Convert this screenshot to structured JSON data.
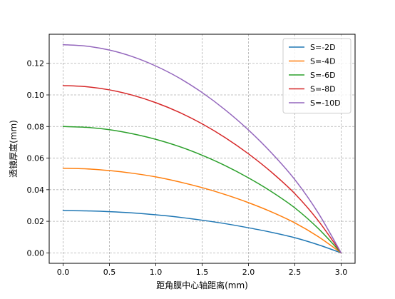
{
  "chart_data": {
    "type": "line",
    "xlabel": "距角膜中心轴距离(mm)",
    "ylabel": "透镜厚度(mm)",
    "xlim": [
      -0.15,
      3.15
    ],
    "ylim": [
      -0.0066,
      0.1384
    ],
    "xticks": [
      {
        "value": 0.0,
        "label": "0.0"
      },
      {
        "value": 0.5,
        "label": "0.5"
      },
      {
        "value": 1.0,
        "label": "1.0"
      },
      {
        "value": 1.5,
        "label": "1.5"
      },
      {
        "value": 2.0,
        "label": "2.0"
      },
      {
        "value": 2.5,
        "label": "2.5"
      },
      {
        "value": 3.0,
        "label": "3.0"
      }
    ],
    "yticks": [
      {
        "value": 0.0,
        "label": "0.00"
      },
      {
        "value": 0.02,
        "label": "0.02"
      },
      {
        "value": 0.04,
        "label": "0.04"
      },
      {
        "value": 0.06,
        "label": "0.06"
      },
      {
        "value": 0.08,
        "label": "0.08"
      },
      {
        "value": 0.1,
        "label": "0.10"
      },
      {
        "value": 0.12,
        "label": "0.12"
      }
    ],
    "grid": true,
    "legend_position": "top-right",
    "x": [
      0.0,
      0.25,
      0.5,
      0.75,
      1.0,
      1.25,
      1.5,
      1.75,
      2.0,
      2.25,
      2.5,
      2.75,
      3.0
    ],
    "series": [
      {
        "name": "S=-2D",
        "color": "#1f77b4",
        "values": [
          0.0268,
          0.0266,
          0.0261,
          0.0253,
          0.0241,
          0.0226,
          0.0207,
          0.0185,
          0.0159,
          0.013,
          0.0096,
          0.0052,
          0.0
        ]
      },
      {
        "name": "S=-4D",
        "color": "#ff7f0e",
        "values": [
          0.0536,
          0.0532,
          0.0521,
          0.0504,
          0.0481,
          0.045,
          0.0413,
          0.0369,
          0.0318,
          0.0259,
          0.019,
          0.0104,
          0.0
        ]
      },
      {
        "name": "S=-6D",
        "color": "#2ca02c",
        "values": [
          0.08,
          0.0795,
          0.078,
          0.0754,
          0.0719,
          0.0674,
          0.0618,
          0.0552,
          0.0475,
          0.0387,
          0.0285,
          0.0156,
          0.0
        ]
      },
      {
        "name": "S=-8D",
        "color": "#d62728",
        "values": [
          0.1059,
          0.1052,
          0.1032,
          0.0998,
          0.0951,
          0.0891,
          0.0817,
          0.0729,
          0.0627,
          0.051,
          0.0375,
          0.0206,
          0.0
        ]
      },
      {
        "name": "S=-10D",
        "color": "#9467bd",
        "values": [
          0.1318,
          0.1309,
          0.1284,
          0.1242,
          0.1183,
          0.1108,
          0.1015,
          0.0905,
          0.0778,
          0.0632,
          0.0464,
          0.0255,
          0.0
        ]
      }
    ]
  }
}
